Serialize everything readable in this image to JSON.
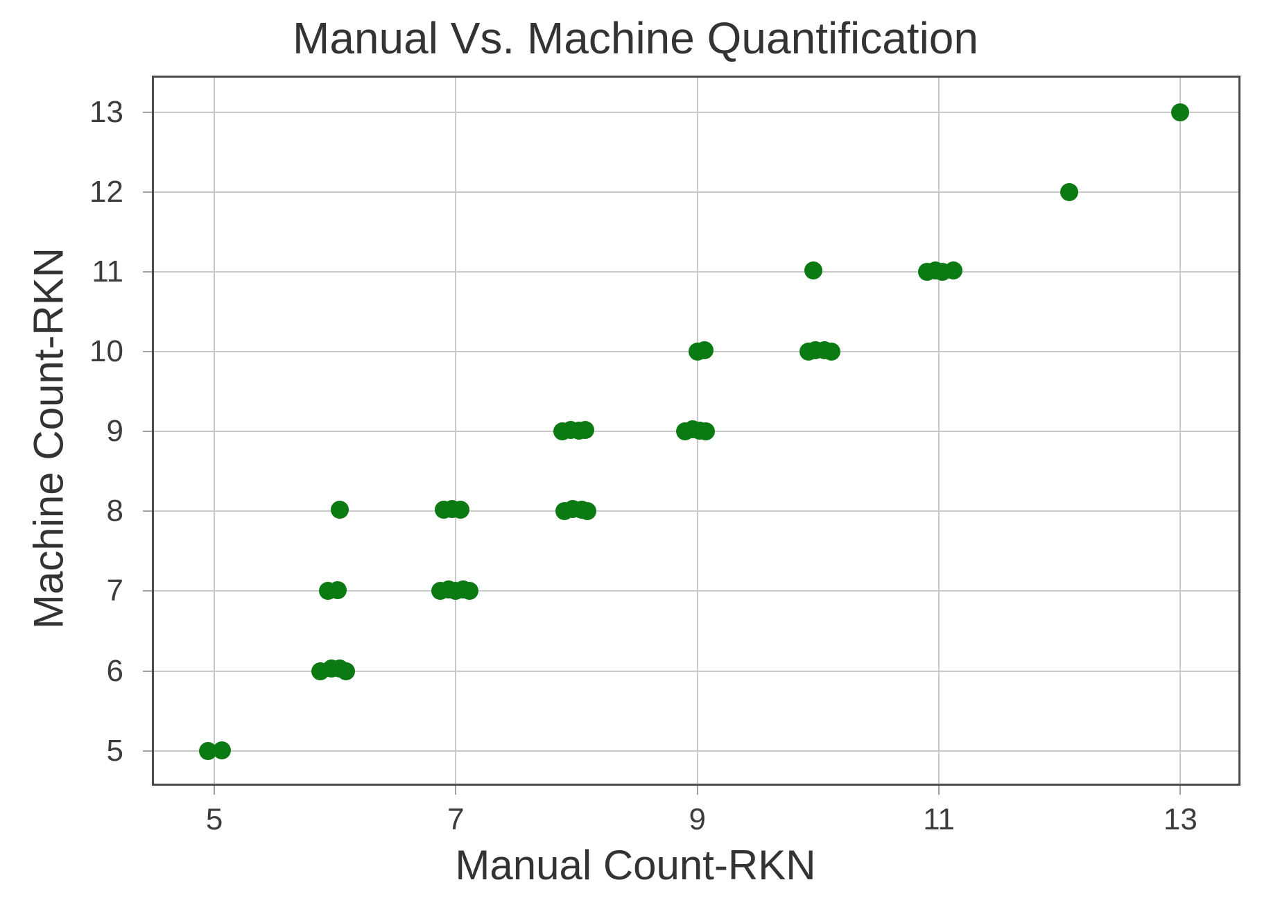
{
  "chart_data": {
    "type": "scatter",
    "title": "Manual Vs. Machine Quantification",
    "xlabel": "Manual Count-RKN",
    "ylabel": "Machine Count-RKN",
    "xlim": [
      4.5,
      13.48
    ],
    "ylim": [
      4.59,
      13.43
    ],
    "xticks": [
      5,
      7,
      9,
      11,
      13
    ],
    "yticks": [
      5,
      6,
      7,
      8,
      9,
      10,
      11,
      12,
      13
    ],
    "grid": true,
    "legend": false,
    "marker": "circle",
    "points": [
      [
        4.95,
        5.0
      ],
      [
        5.06,
        5.01
      ],
      [
        5.88,
        6.0
      ],
      [
        5.97,
        6.03
      ],
      [
        6.04,
        6.03
      ],
      [
        6.09,
        6.0
      ],
      [
        5.94,
        7.0
      ],
      [
        6.02,
        7.01
      ],
      [
        6.87,
        7.0
      ],
      [
        6.94,
        7.02
      ],
      [
        7.0,
        7.0
      ],
      [
        7.06,
        7.02
      ],
      [
        7.11,
        7.0
      ],
      [
        6.04,
        8.02
      ],
      [
        6.9,
        8.02
      ],
      [
        6.97,
        8.03
      ],
      [
        7.04,
        8.02
      ],
      [
        7.9,
        8.0
      ],
      [
        7.97,
        8.03
      ],
      [
        8.04,
        8.02
      ],
      [
        8.09,
        8.0
      ],
      [
        7.88,
        9.0
      ],
      [
        7.95,
        9.02
      ],
      [
        8.02,
        9.01
      ],
      [
        8.07,
        9.02
      ],
      [
        8.9,
        9.0
      ],
      [
        8.96,
        9.03
      ],
      [
        9.02,
        9.01
      ],
      [
        9.07,
        9.0
      ],
      [
        9.0,
        10.0
      ],
      [
        9.06,
        10.02
      ],
      [
        9.92,
        10.0
      ],
      [
        9.98,
        10.02
      ],
      [
        10.05,
        10.02
      ],
      [
        10.11,
        10.0
      ],
      [
        9.96,
        11.02
      ],
      [
        10.9,
        11.0
      ],
      [
        10.97,
        11.02
      ],
      [
        11.03,
        11.0
      ],
      [
        11.12,
        11.02
      ],
      [
        12.08,
        12.0
      ],
      [
        13.0,
        13.0
      ]
    ]
  },
  "colors": {
    "marker": "#0b7a13",
    "grid": "#c9c9c9",
    "tick": "#a0a0a0",
    "spine": "#4a4a4a",
    "text": "#333333",
    "background": "#ffffff"
  }
}
